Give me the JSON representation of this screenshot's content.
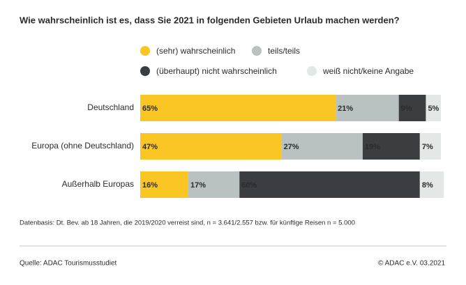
{
  "chart_data": {
    "type": "stacked-bar",
    "orientation": "horizontal",
    "title": "Wie wahrscheinlich ist es, dass Sie 2021 in folgenden Gebieten Urlaub machen werden?",
    "categories": [
      "Deutschland",
      "Europa (ohne Deutschland)",
      "Außerhalb Europas"
    ],
    "series": [
      {
        "name": "(sehr) wahrscheinlich",
        "color": "#f9c623",
        "values": [
          65,
          47,
          16
        ],
        "value_labels": [
          "65%",
          "47%",
          "16%"
        ]
      },
      {
        "name": "teils/teils",
        "color": "#b9c2c0",
        "values": [
          21,
          27,
          17
        ],
        "value_labels": [
          "21%",
          "27%",
          "17%"
        ]
      },
      {
        "name": "(überhaupt) nicht wahrscheinlich",
        "color": "#3b3e41",
        "values": [
          9,
          19,
          60
        ],
        "value_labels": [
          "9%",
          "19%",
          "60%"
        ]
      },
      {
        "name": "weiß nicht/keine Angabe",
        "color": "#e3e7e6",
        "values": [
          5,
          7,
          8
        ],
        "value_labels": [
          "5%",
          "7%",
          "8%"
        ]
      }
    ],
    "note": "Datenbasis: Dt. Bev. ab 18 Jahren, die 2019/2020 verreist sind, n = 3.641/2.557 bzw. für künftige Reisen n = 5.000",
    "source": "Quelle: ADAC Tourismusstudiet",
    "copyright": "© ADAC e.V. 03.2021"
  }
}
